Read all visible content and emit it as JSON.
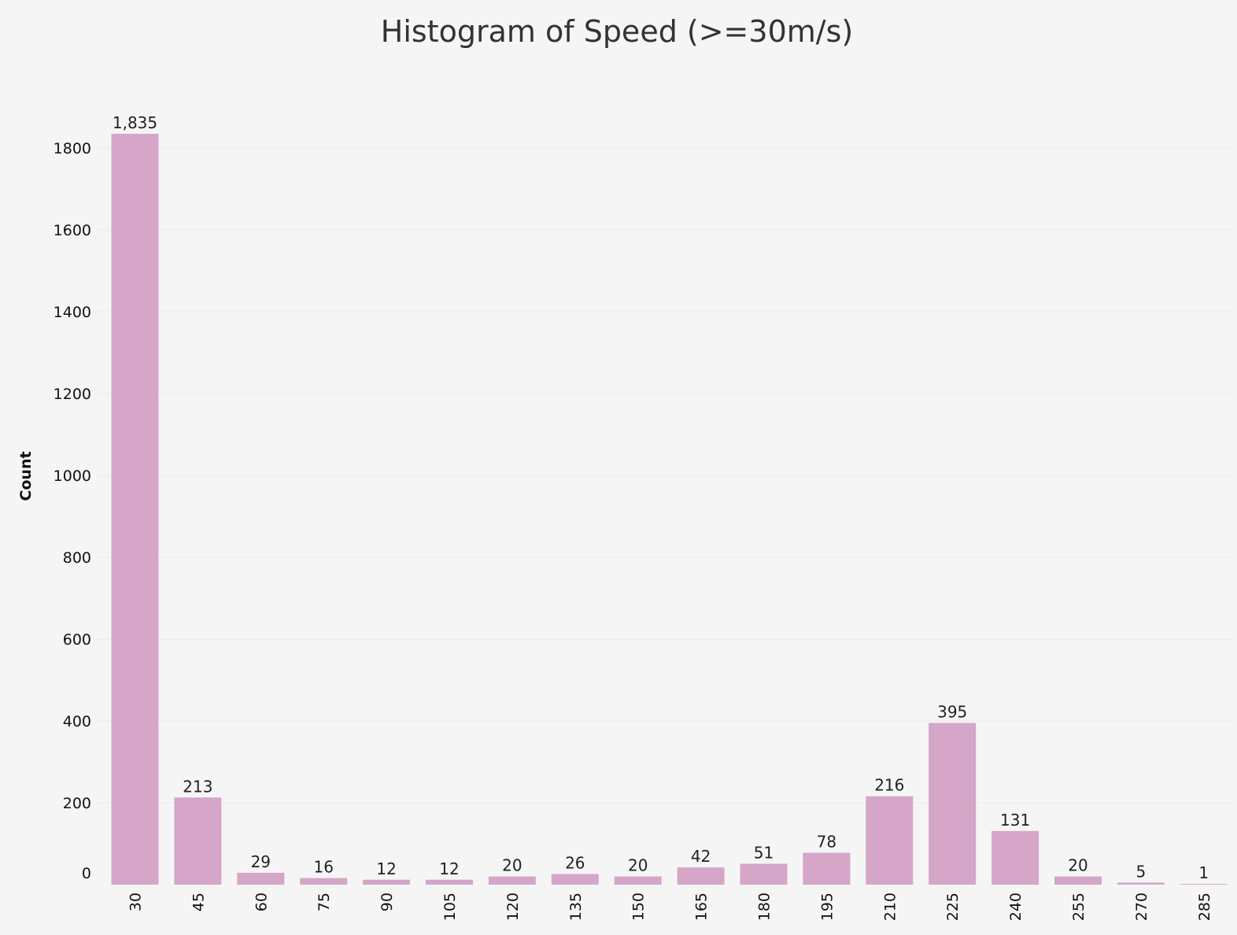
{
  "chart_data": {
    "type": "bar",
    "title": "Histogram of Speed (>=30m/s)",
    "xlabel": "",
    "ylabel": "Count",
    "categories": [
      "30",
      "45",
      "60",
      "75",
      "90",
      "105",
      "120",
      "135",
      "150",
      "165",
      "180",
      "195",
      "210",
      "225",
      "240",
      "255",
      "270",
      "285"
    ],
    "values": [
      1835,
      213,
      29,
      16,
      12,
      12,
      20,
      26,
      20,
      42,
      51,
      78,
      216,
      395,
      131,
      20,
      5,
      1
    ],
    "data_labels": [
      "1,835",
      "213",
      "29",
      "16",
      "12",
      "12",
      "20",
      "26",
      "20",
      "42",
      "51",
      "78",
      "216",
      "395",
      "131",
      "20",
      "5",
      "1"
    ],
    "y_ticks": [
      0,
      200,
      400,
      600,
      800,
      1000,
      1200,
      1400,
      1600,
      1800
    ],
    "ylim": [
      0,
      1835
    ],
    "grid": true,
    "bar_color": "#d5a6c8",
    "gridline_color": "#ebebeb",
    "background_color": "#f5f5f5"
  }
}
